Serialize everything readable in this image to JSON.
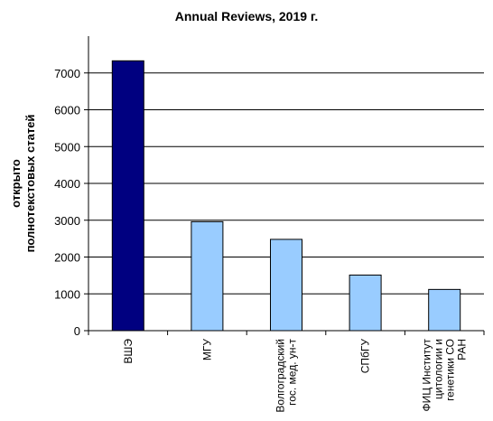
{
  "chart_data": {
    "type": "bar",
    "title": "Annual Reviews, 2019 г.",
    "ylabel": [
      "открыто",
      "полнотекстовых статей"
    ],
    "xlabel": "",
    "categories": [
      [
        "ВШЭ"
      ],
      [
        "МГУ"
      ],
      [
        "Волгоградский",
        "гос. мед. ун-т"
      ],
      [
        "СПбГУ"
      ],
      [
        "ФИЦ Институт",
        "цитологии и",
        "генетики СО",
        "РАН"
      ]
    ],
    "values": [
      7330,
      2960,
      2480,
      1510,
      1120
    ],
    "highlight_index": 0,
    "colors": {
      "highlight": "#000080",
      "default": "#99ccff",
      "stroke": "#000000",
      "grid": "#000000"
    },
    "ylim": [
      0,
      8000
    ],
    "yticks": [
      0,
      1000,
      2000,
      3000,
      4000,
      5000,
      6000,
      7000
    ],
    "grid": true,
    "legend": "none"
  }
}
